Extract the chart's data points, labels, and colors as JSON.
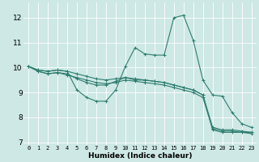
{
  "xlabel": "Humidex (Indice chaleur)",
  "bg_color": "#cde8e5",
  "grid_color": "#ffffff",
  "line_color": "#2e7d6e",
  "xlim": [
    -0.5,
    23.5
  ],
  "ylim": [
    6.9,
    12.6
  ],
  "yticks": [
    7,
    8,
    9,
    10,
    11,
    12
  ],
  "xticks": [
    0,
    1,
    2,
    3,
    4,
    5,
    6,
    7,
    8,
    9,
    10,
    11,
    12,
    13,
    14,
    15,
    16,
    17,
    18,
    19,
    20,
    21,
    22,
    23
  ],
  "series": [
    [
      10.05,
      9.9,
      9.85,
      9.9,
      9.85,
      9.1,
      8.8,
      8.65,
      8.65,
      9.1,
      10.05,
      10.8,
      10.55,
      10.5,
      10.5,
      12.0,
      12.1,
      11.1,
      9.5,
      8.9,
      8.85,
      8.2,
      7.75,
      7.6
    ],
    [
      10.05,
      9.85,
      9.75,
      9.8,
      9.75,
      9.55,
      9.4,
      9.3,
      9.3,
      9.45,
      9.6,
      9.5,
      9.5,
      9.45,
      9.4,
      9.3,
      9.2,
      9.1,
      8.9,
      7.6,
      7.5,
      7.5,
      7.45,
      7.4
    ],
    [
      10.05,
      9.85,
      9.75,
      9.8,
      9.7,
      9.6,
      9.5,
      9.4,
      9.35,
      9.4,
      9.5,
      9.45,
      9.4,
      9.35,
      9.3,
      9.2,
      9.1,
      9.0,
      8.8,
      7.55,
      7.45,
      7.45,
      7.4,
      7.4
    ],
    [
      10.05,
      9.9,
      9.85,
      9.9,
      9.85,
      9.75,
      9.65,
      9.55,
      9.5,
      9.55,
      9.6,
      9.55,
      9.5,
      9.45,
      9.4,
      9.3,
      9.2,
      9.1,
      8.9,
      7.5,
      7.4,
      7.4,
      7.4,
      7.35
    ]
  ]
}
